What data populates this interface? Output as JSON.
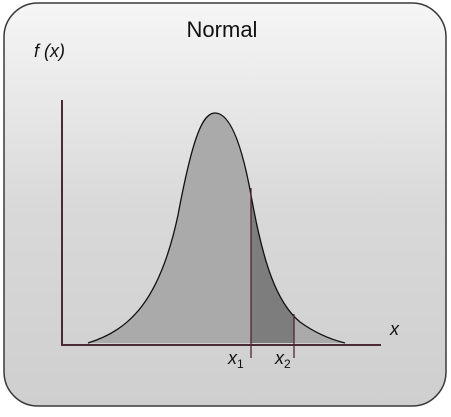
{
  "title": "Normal",
  "y_axis_label": "f (x)",
  "x_axis_label": "x",
  "markers": [
    {
      "label": "x",
      "subscript": "1"
    },
    {
      "label": "x",
      "subscript": "2"
    }
  ]
}
